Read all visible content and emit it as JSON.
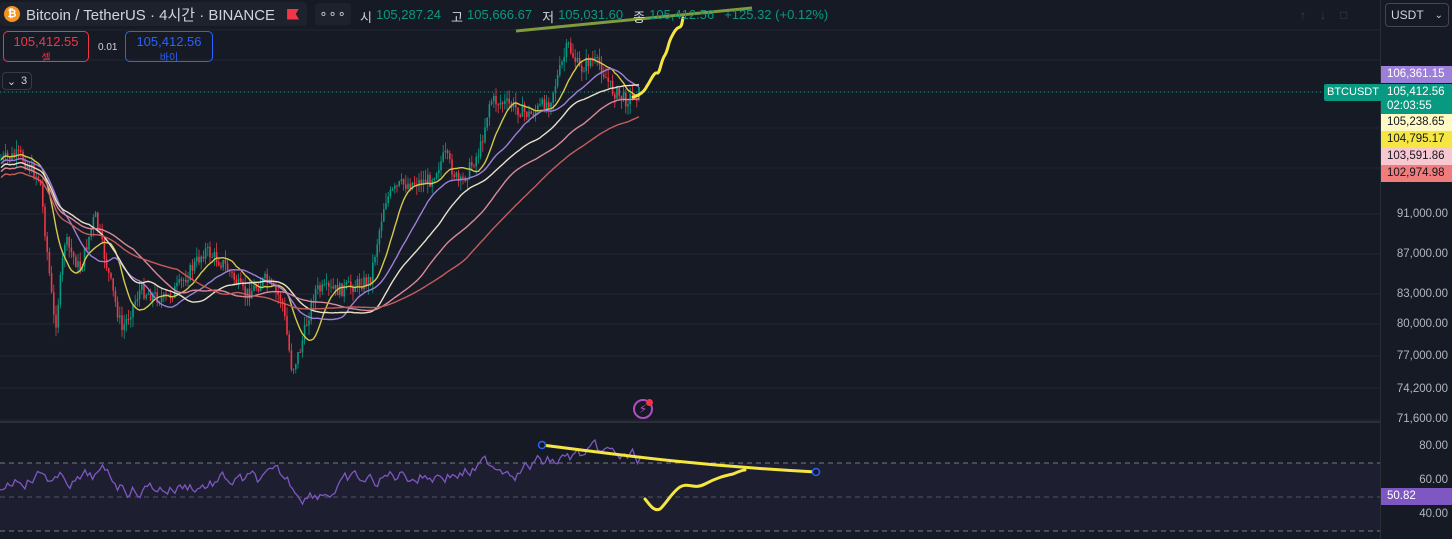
{
  "header": {
    "symbol_title": "Bitcoin / TetherUS · 4시간 · BINANCE",
    "logo_glyph": "₿",
    "more_label": "∘∘∘"
  },
  "ohlc": {
    "open_key": "시",
    "open": "105,287.24",
    "high_key": "고",
    "high": "105,666.67",
    "low_key": "저",
    "low": "105,031.60",
    "close_key": "종",
    "close": "105,412.56",
    "change": "+125.32 (+0.12%)"
  },
  "trade": {
    "sell_price": "105,412.55",
    "sell_label": "셀",
    "spread": "0.01",
    "buy_price": "105,412.56",
    "buy_label": "바이"
  },
  "indicators_toggle": {
    "chevron": "⌄",
    "count": "3"
  },
  "price_scale": {
    "currency": "USDT",
    "ticks": [
      "91,000.00",
      "87,000.00",
      "83,000.00",
      "80,000.00",
      "77,000.00",
      "74,200.00",
      "71,600.00"
    ],
    "tags": {
      "t1": "106,361.15",
      "last": "105,412.56",
      "countdown": "02:03:55",
      "t2": "105,238.65",
      "t3": "104,795.17",
      "t4": "103,591.86",
      "t5": "102,974.98"
    },
    "symbol_tag": "BTCUSDT"
  },
  "rsi": {
    "ticks": [
      "80.00",
      "60.00",
      "40.00"
    ],
    "value": "50.82"
  },
  "colors": {
    "up": "#089981",
    "down": "#f23645",
    "rsi": "#7e57c2",
    "drawing_yellow": "#f5e642",
    "drawing_green": "#7f9b3e"
  }
}
